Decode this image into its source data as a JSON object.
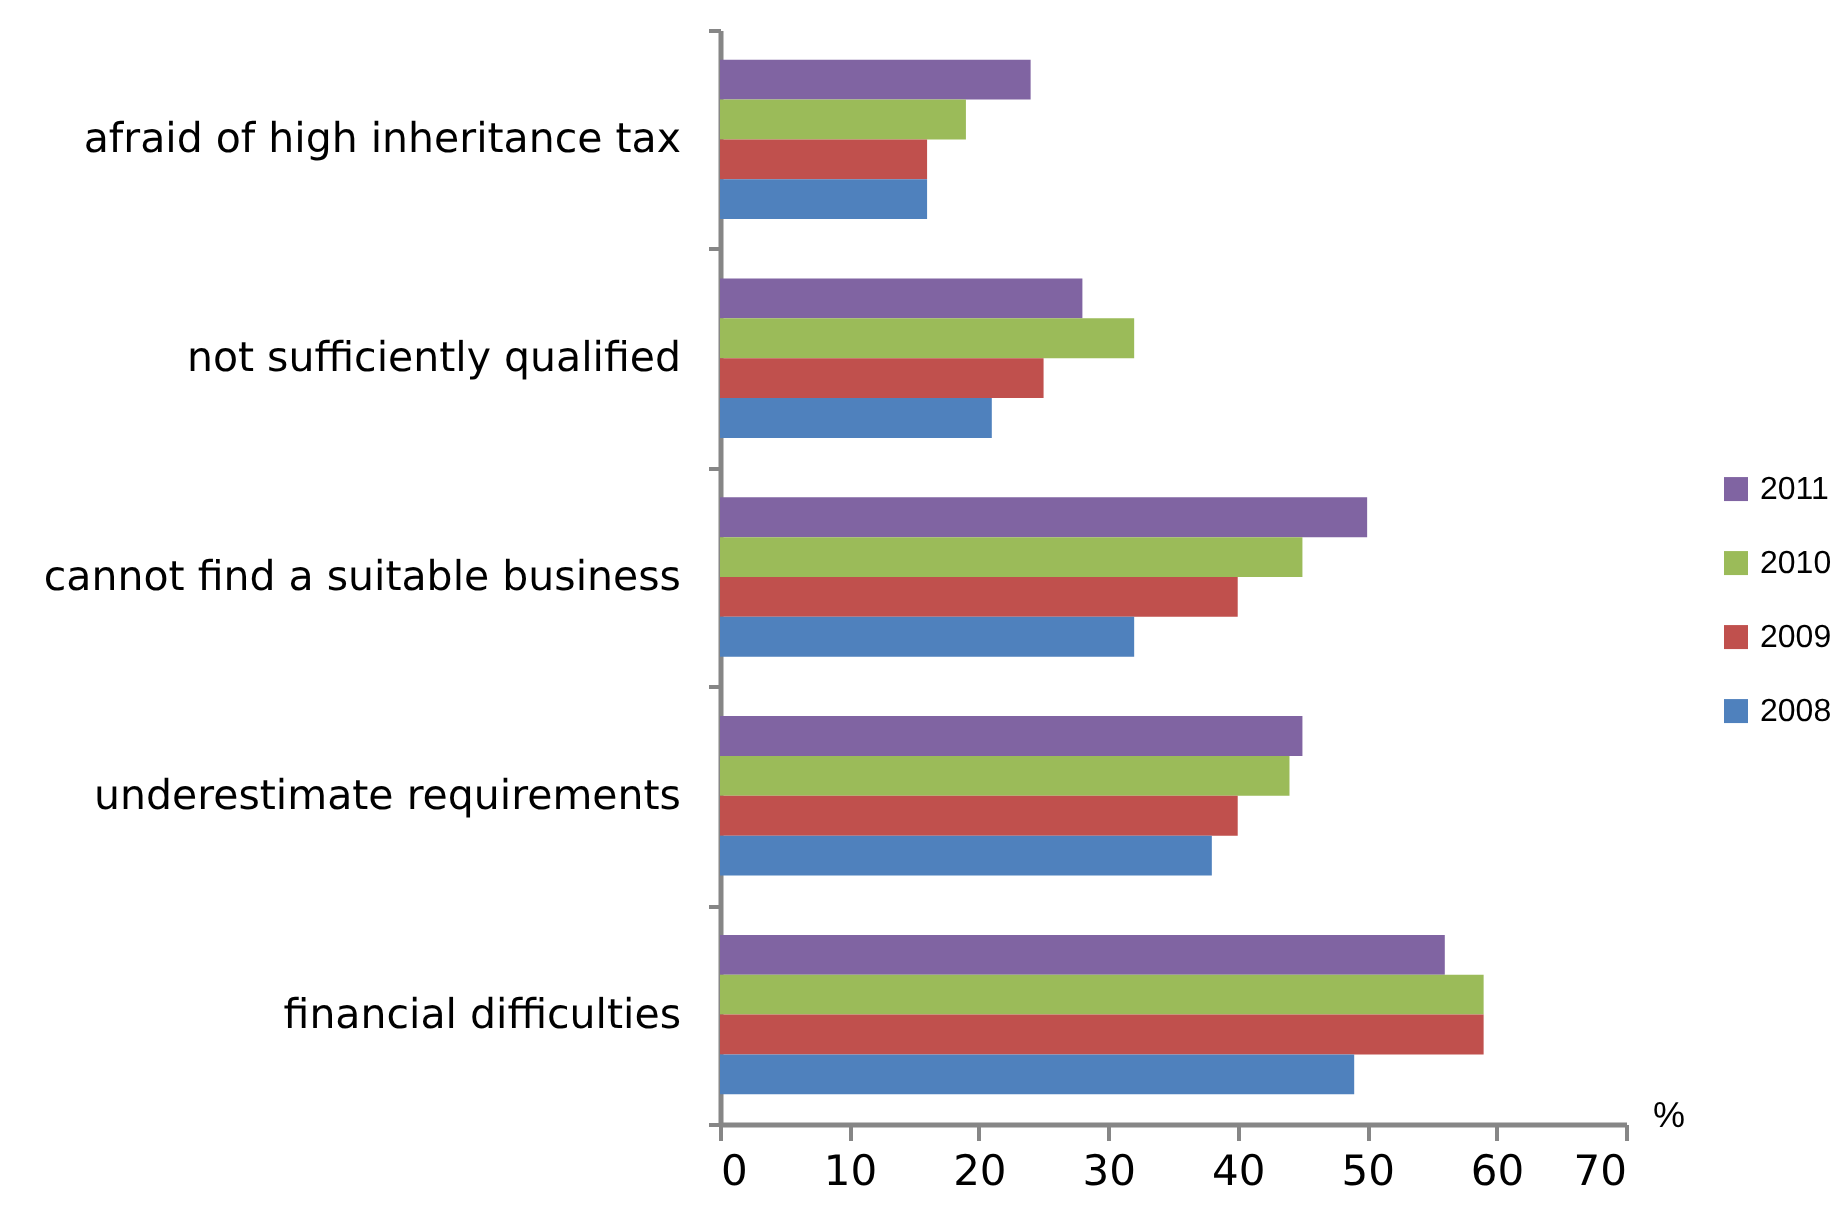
{
  "chart_data": {
    "type": "bar",
    "orientation": "horizontal",
    "categories": [
      "afraid of high inheritance tax",
      "not sufficiently qualified",
      "cannot find a suitable business",
      "underestimate requirements",
      "financial difficulties"
    ],
    "series": [
      {
        "name": "2011",
        "color": "#8064a2",
        "values": [
          24,
          28,
          50,
          45,
          56
        ]
      },
      {
        "name": "2010",
        "color": "#9bbb59",
        "values": [
          19,
          32,
          45,
          44,
          59
        ]
      },
      {
        "name": "2009",
        "color": "#c0504d",
        "values": [
          16,
          25,
          40,
          40,
          59
        ]
      },
      {
        "name": "2008",
        "color": "#4f81bd",
        "values": [
          16,
          21,
          32,
          38,
          49
        ]
      }
    ],
    "xlim": [
      0,
      70
    ],
    "xticks": [
      0,
      10,
      20,
      30,
      40,
      50,
      60,
      70
    ],
    "xlabel": "%",
    "legend": "right"
  }
}
